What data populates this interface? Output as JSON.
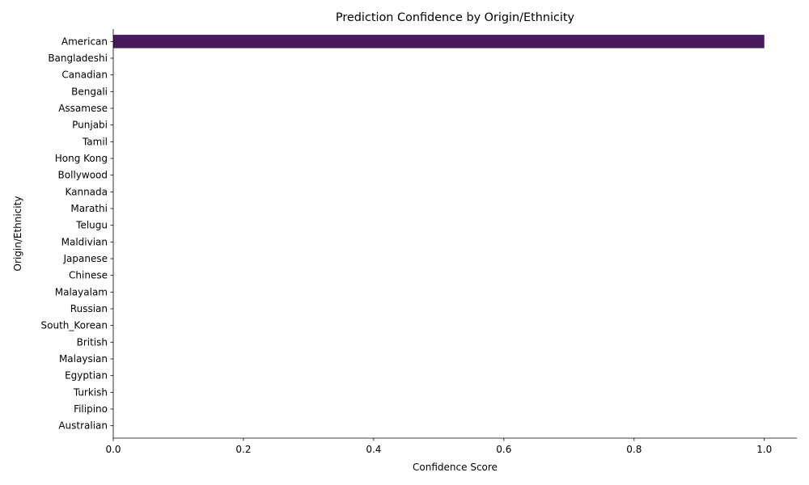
{
  "chart_data": {
    "type": "bar",
    "orientation": "horizontal",
    "title": "Prediction Confidence by Origin/Ethnicity",
    "xlabel": "Confidence Score",
    "ylabel": "Origin/Ethnicity",
    "xlim": [
      0,
      1.05
    ],
    "xticks": [
      "0.0",
      "0.2",
      "0.4",
      "0.6",
      "0.8",
      "1.0"
    ],
    "grid": false,
    "categories": [
      "American",
      "Bangladeshi",
      "Canadian",
      "Bengali",
      "Assamese",
      "Punjabi",
      "Tamil",
      "Hong Kong",
      "Bollywood",
      "Kannada",
      "Marathi",
      "Telugu",
      "Maldivian",
      "Japanese",
      "Chinese",
      "Malayalam",
      "Russian",
      "South_Korean",
      "British",
      "Malaysian",
      "Egyptian",
      "Turkish",
      "Filipino",
      "Australian"
    ],
    "values": [
      1.0,
      0,
      0,
      0,
      0,
      0,
      0,
      0,
      0,
      0,
      0,
      0,
      0,
      0,
      0,
      0,
      0,
      0,
      0,
      0,
      0,
      0,
      0,
      0
    ],
    "colors": {
      "bar": "#481a5e",
      "axis": "#000000"
    }
  }
}
